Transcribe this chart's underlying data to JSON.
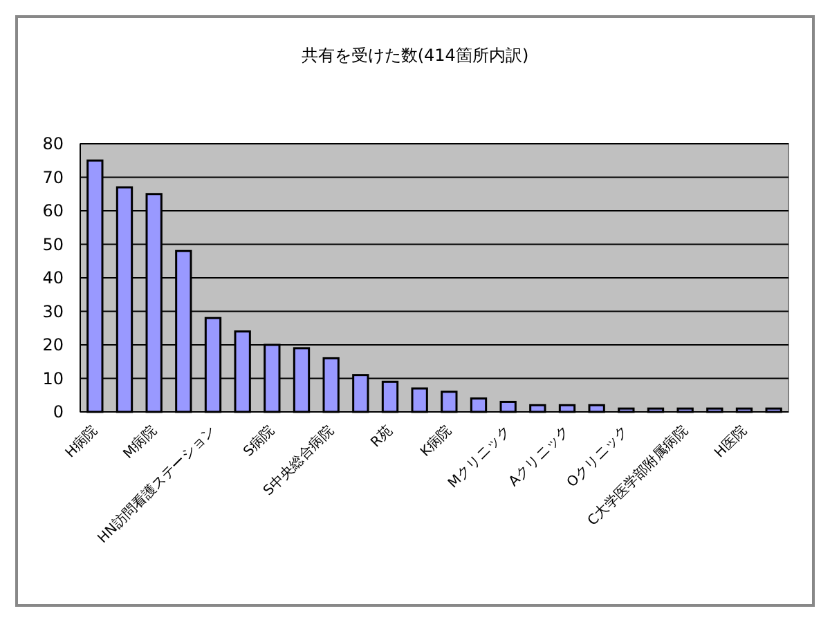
{
  "chart_data": {
    "type": "bar",
    "title": "共有を受けた数(414箇所内訳)",
    "categories": [
      "H病院",
      null,
      "M病院",
      null,
      "HN訪問看護ステーション",
      null,
      "S病院",
      null,
      "S中央総合病院",
      null,
      "R苑",
      null,
      "K病院",
      null,
      "Mクリニック",
      null,
      "Aクリニック",
      null,
      "Oクリニック",
      null,
      "C大学医学部附属病院",
      null,
      "H医院",
      null
    ],
    "values": [
      75,
      67,
      65,
      48,
      28,
      24,
      20,
      19,
      16,
      11,
      9,
      7,
      6,
      4,
      3,
      2,
      2,
      2,
      1,
      1,
      1,
      1,
      1,
      1
    ],
    "color": "#9999ff",
    "ylim": [
      0,
      80
    ],
    "yticks": [
      0,
      10,
      20,
      30,
      40,
      50,
      60,
      70,
      80
    ],
    "grid": "y"
  }
}
